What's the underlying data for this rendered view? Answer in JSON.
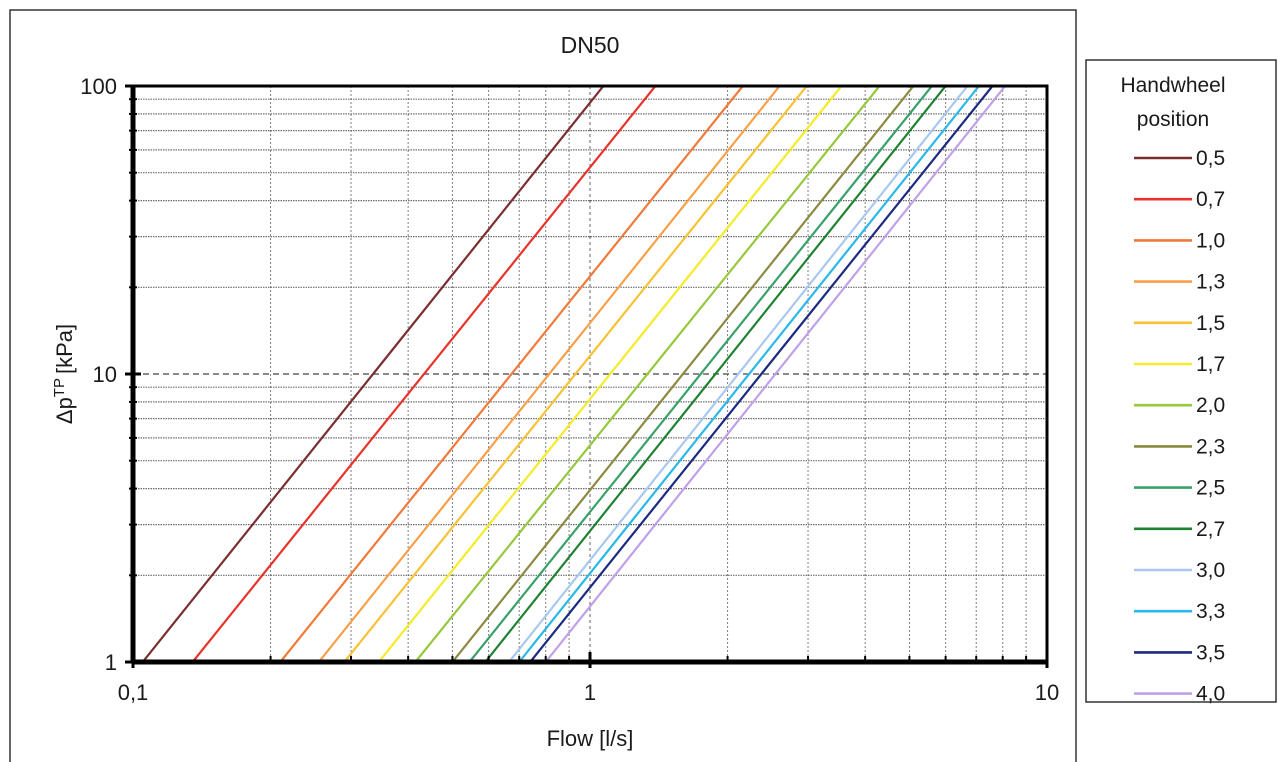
{
  "chart_data": {
    "type": "line",
    "title": "DN50",
    "xlabel": "Flow [l/s]",
    "ylabel_main": "Δp",
    "ylabel_sup": "TP",
    "ylabel_unit": "[kPa]",
    "x_scale": "log",
    "y_scale": "log",
    "xlim": [
      0.1,
      10
    ],
    "ylim": [
      1,
      100
    ],
    "x_ticks": [
      {
        "value": 0.1,
        "label": "0,1"
      },
      {
        "value": 1,
        "label": "1"
      },
      {
        "value": 10,
        "label": "10"
      }
    ],
    "y_ticks": [
      {
        "value": 1,
        "label": "1"
      },
      {
        "value": 10,
        "label": "10"
      },
      {
        "value": 100,
        "label": "100"
      }
    ],
    "grid": true,
    "legend": {
      "title_line1": "Handwheel",
      "title_line2": "position",
      "placement": "right"
    },
    "series": [
      {
        "name": "0,5",
        "color": "#7b2e2e",
        "x": [
          0.105,
          1.07
        ],
        "y": [
          1,
          100
        ]
      },
      {
        "name": "0,7",
        "color": "#e8332a",
        "x": [
          0.135,
          1.39
        ],
        "y": [
          1,
          100
        ]
      },
      {
        "name": "1,0",
        "color": "#f07a3a",
        "x": [
          0.21,
          2.16
        ],
        "y": [
          1,
          100
        ]
      },
      {
        "name": "1,3",
        "color": "#f7a04a",
        "x": [
          0.255,
          2.6
        ],
        "y": [
          1,
          100
        ]
      },
      {
        "name": "1,5",
        "color": "#f7c234",
        "x": [
          0.29,
          2.98
        ],
        "y": [
          1,
          100
        ]
      },
      {
        "name": "1,7",
        "color": "#f5eb2a",
        "x": [
          0.345,
          3.55
        ],
        "y": [
          1,
          100
        ]
      },
      {
        "name": "2,0",
        "color": "#96c83c",
        "x": [
          0.415,
          4.3
        ],
        "y": [
          1,
          100
        ]
      },
      {
        "name": "2,3",
        "color": "#8a8a40",
        "x": [
          0.5,
          5.1
        ],
        "y": [
          1,
          100
        ]
      },
      {
        "name": "2,5",
        "color": "#3aa06a",
        "x": [
          0.545,
          5.6
        ],
        "y": [
          1,
          100
        ]
      },
      {
        "name": "2,7",
        "color": "#1e8232",
        "x": [
          0.59,
          6.0
        ],
        "y": [
          1,
          100
        ]
      },
      {
        "name": "3,0",
        "color": "#a8c8f0",
        "x": [
          0.665,
          6.7
        ],
        "y": [
          1,
          100
        ]
      },
      {
        "name": "3,3",
        "color": "#2ab8e8",
        "x": [
          0.7,
          7.1
        ],
        "y": [
          1,
          100
        ]
      },
      {
        "name": "3,5",
        "color": "#1c2a80",
        "x": [
          0.74,
          7.6
        ],
        "y": [
          1,
          100
        ]
      },
      {
        "name": "4,0",
        "color": "#c0a0e8",
        "x": [
          0.8,
          8.1
        ],
        "y": [
          1,
          100
        ]
      }
    ]
  }
}
